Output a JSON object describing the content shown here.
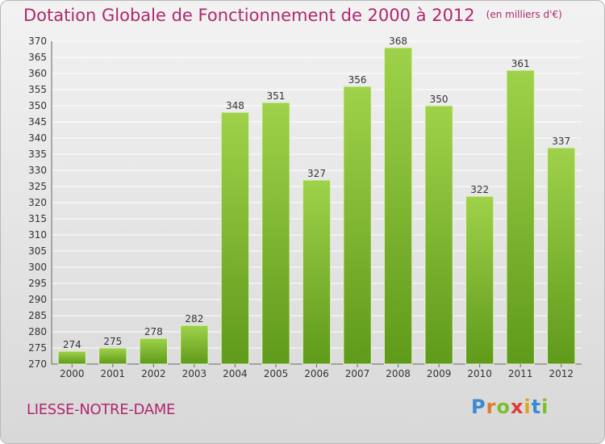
{
  "title": "Dotation Globale de Fonctionnement de 2000 à 2012",
  "unit": "(en milliers d'€)",
  "commune": "LIESSE-NOTRE-DAME",
  "logo": {
    "text": "Proxiti",
    "letters": [
      "P",
      "r",
      "o",
      "x",
      "i",
      "t",
      "i"
    ]
  },
  "colors": {
    "title": "#b0276f",
    "bar_top": "#9fd24a",
    "bar_bottom": "#5f9a1a",
    "grid": "#ffffff",
    "axis": "#666666"
  },
  "chart_data": {
    "type": "bar",
    "categories": [
      "2000",
      "2001",
      "2002",
      "2003",
      "2004",
      "2005",
      "2006",
      "2007",
      "2008",
      "2009",
      "2010",
      "2011",
      "2012"
    ],
    "values": [
      274,
      275,
      278,
      282,
      348,
      351,
      327,
      356,
      368,
      350,
      322,
      361,
      337
    ],
    "ylim": [
      270,
      370
    ],
    "ytick_step": 5,
    "grid": true
  }
}
